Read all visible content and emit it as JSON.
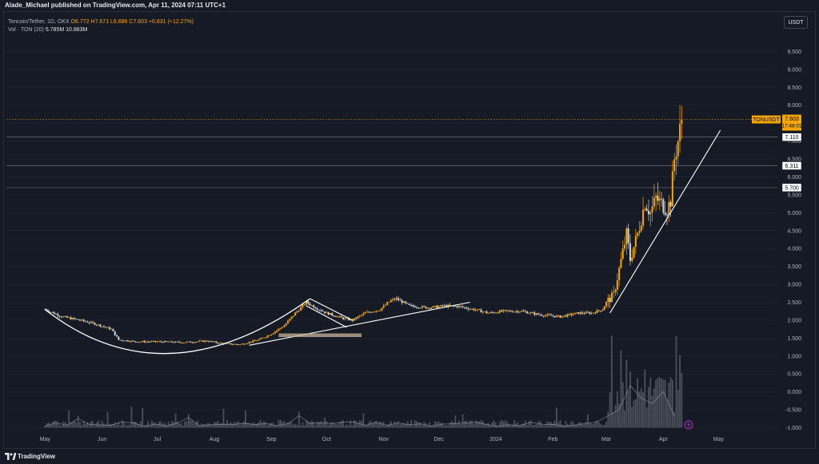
{
  "header": {
    "publisher_line": "Alade_Michael published on TradingView.com, Apr 11, 2024 07:11 UTC+1"
  },
  "legend": {
    "symbol_line": "Toncoin/Tether, 1D, OKX",
    "ohlc": "O6.772 H7.671 L6.686 C7.603 +0.831 (+12.27%)",
    "volume_label": "Vol · TON (20)",
    "volume_value": "5.785M",
    "volume_ma": "10.883M"
  },
  "currency_button": "USDT",
  "footer": {
    "brand": "TradingView"
  },
  "chart_data": {
    "type": "candlestick",
    "symbol": "TONUSDT",
    "interval": "1D",
    "price_axis": {
      "ticks": [
        9.5,
        9.0,
        8.5,
        8.0,
        7.5,
        7.0,
        6.5,
        6.0,
        5.5,
        5.0,
        4.5,
        4.0,
        3.5,
        3.0,
        2.5,
        2.0,
        1.5,
        1.0,
        0.5,
        0.0,
        -0.5,
        -1.0
      ],
      "tick_labels": [
        "9.500",
        "9.000",
        "8.500",
        "8.000",
        "7.500",
        "7.000",
        "6.500",
        "6.000",
        "5.500",
        "5.000",
        "4.500",
        "4.000",
        "3.500",
        "3.000",
        "2.500",
        "2.000",
        "1.500",
        "1.000",
        "0.500",
        "0.000",
        "-0.500",
        "-1.000"
      ],
      "range": [
        -1.1,
        10.0
      ]
    },
    "time_axis": {
      "labels": [
        "May",
        "Jun",
        "Jul",
        "Aug",
        "Sep",
        "Oct",
        "Nov",
        "Dec",
        "2024",
        "Feb",
        "Mar",
        "Apr",
        "May"
      ],
      "dates": [
        "2023-05-01",
        "2023-06-01",
        "2023-07-01",
        "2023-08-01",
        "2023-09-01",
        "2023-10-01",
        "2023-11-01",
        "2023-12-01",
        "2024-01-01",
        "2024-02-01",
        "2024-03-01",
        "2024-04-01",
        "2024-05-01"
      ]
    },
    "price_labels": [
      {
        "text": "TONUSDT",
        "value": 7.603,
        "color": "#f7a600"
      },
      {
        "text": "7.603",
        "value": 7.603,
        "color": "#f7a600"
      },
      {
        "text": "17:48:01",
        "value": 7.603,
        "color": "#f7a600"
      },
      {
        "text": "7.110",
        "value": 7.11,
        "color": "#ffffff"
      },
      {
        "text": "6.311",
        "value": 6.311,
        "color": "#ffffff"
      },
      {
        "text": "5.700",
        "value": 5.7,
        "color": "#ffffff"
      }
    ],
    "horizontal_lines": [
      {
        "value": 7.603,
        "style": "dotted",
        "color": "#f7a600"
      },
      {
        "value": 7.11,
        "style": "solid",
        "color": "#787b86"
      },
      {
        "value": 6.311,
        "style": "solid",
        "color": "#787b86"
      },
      {
        "value": 5.7,
        "style": "solid",
        "color": "#787b86"
      }
    ],
    "price_path": [
      [
        "2023-05-01",
        2.3
      ],
      [
        "2023-05-10",
        2.1
      ],
      [
        "2023-05-20",
        2.0
      ],
      [
        "2023-05-28",
        1.9
      ],
      [
        "2023-06-06",
        1.75
      ],
      [
        "2023-06-10",
        1.45
      ],
      [
        "2023-06-20",
        1.4
      ],
      [
        "2023-07-01",
        1.4
      ],
      [
        "2023-07-15",
        1.38
      ],
      [
        "2023-07-28",
        1.42
      ],
      [
        "2023-08-05",
        1.35
      ],
      [
        "2023-08-15",
        1.32
      ],
      [
        "2023-08-25",
        1.45
      ],
      [
        "2023-09-01",
        1.62
      ],
      [
        "2023-09-08",
        1.85
      ],
      [
        "2023-09-14",
        2.2
      ],
      [
        "2023-09-20",
        2.5
      ],
      [
        "2023-09-25",
        2.35
      ],
      [
        "2023-10-01",
        2.2
      ],
      [
        "2023-10-10",
        2.05
      ],
      [
        "2023-10-15",
        2.0
      ],
      [
        "2023-10-22",
        2.2
      ],
      [
        "2023-10-30",
        2.3
      ],
      [
        "2023-11-05",
        2.55
      ],
      [
        "2023-11-08",
        2.6
      ],
      [
        "2023-11-15",
        2.4
      ],
      [
        "2023-11-25",
        2.35
      ],
      [
        "2023-12-05",
        2.4
      ],
      [
        "2023-12-12",
        2.38
      ],
      [
        "2023-12-20",
        2.3
      ],
      [
        "2023-12-28",
        2.2
      ],
      [
        "2024-01-05",
        2.25
      ],
      [
        "2024-01-15",
        2.25
      ],
      [
        "2024-01-25",
        2.15
      ],
      [
        "2024-02-05",
        2.1
      ],
      [
        "2024-02-15",
        2.2
      ],
      [
        "2024-02-22",
        2.2
      ],
      [
        "2024-02-28",
        2.3
      ],
      [
        "2024-03-01",
        2.5
      ],
      [
        "2024-03-05",
        2.7
      ],
      [
        "2024-03-10",
        3.9
      ],
      [
        "2024-03-12",
        4.4
      ],
      [
        "2024-03-14",
        3.7
      ],
      [
        "2024-03-18",
        4.4
      ],
      [
        "2024-03-22",
        5.3
      ],
      [
        "2024-03-25",
        5.0
      ],
      [
        "2024-03-28",
        5.4
      ],
      [
        "2024-04-03",
        5.1
      ],
      [
        "2024-04-05",
        5.35
      ],
      [
        "2024-04-07",
        6.5
      ],
      [
        "2024-04-09",
        7.0
      ],
      [
        "2024-04-11",
        7.603
      ]
    ],
    "volume_spikes": [
      [
        "2024-03-04",
        0.95
      ],
      [
        "2024-03-09",
        0.8
      ],
      [
        "2024-03-12",
        0.7
      ],
      [
        "2024-03-22",
        0.6
      ],
      [
        "2024-04-08",
        0.95
      ],
      [
        "2024-04-10",
        0.75
      ]
    ],
    "drawings": [
      {
        "type": "cup-curve",
        "points": [
          [
            "2023-05-01",
            2.3
          ],
          [
            "2023-07-05",
            1.0
          ],
          [
            "2023-09-22",
            2.6
          ]
        ]
      },
      {
        "type": "trendline",
        "points": [
          [
            "2023-08-20",
            1.3
          ],
          [
            "2023-12-18",
            2.5
          ]
        ]
      },
      {
        "type": "flag-upper",
        "points": [
          [
            "2023-09-22",
            2.6
          ],
          [
            "2023-10-15",
            2.0
          ]
        ]
      },
      {
        "type": "flag-lower",
        "points": [
          [
            "2023-09-20",
            2.4
          ],
          [
            "2023-10-12",
            1.8
          ]
        ]
      },
      {
        "type": "zone",
        "points": [
          [
            "2023-09-05",
            1.63
          ],
          [
            "2023-10-20",
            1.53
          ]
        ]
      },
      {
        "type": "trendline",
        "points": [
          [
            "2024-03-03",
            2.2
          ],
          [
            "2024-05-02",
            7.3
          ]
        ]
      }
    ]
  }
}
